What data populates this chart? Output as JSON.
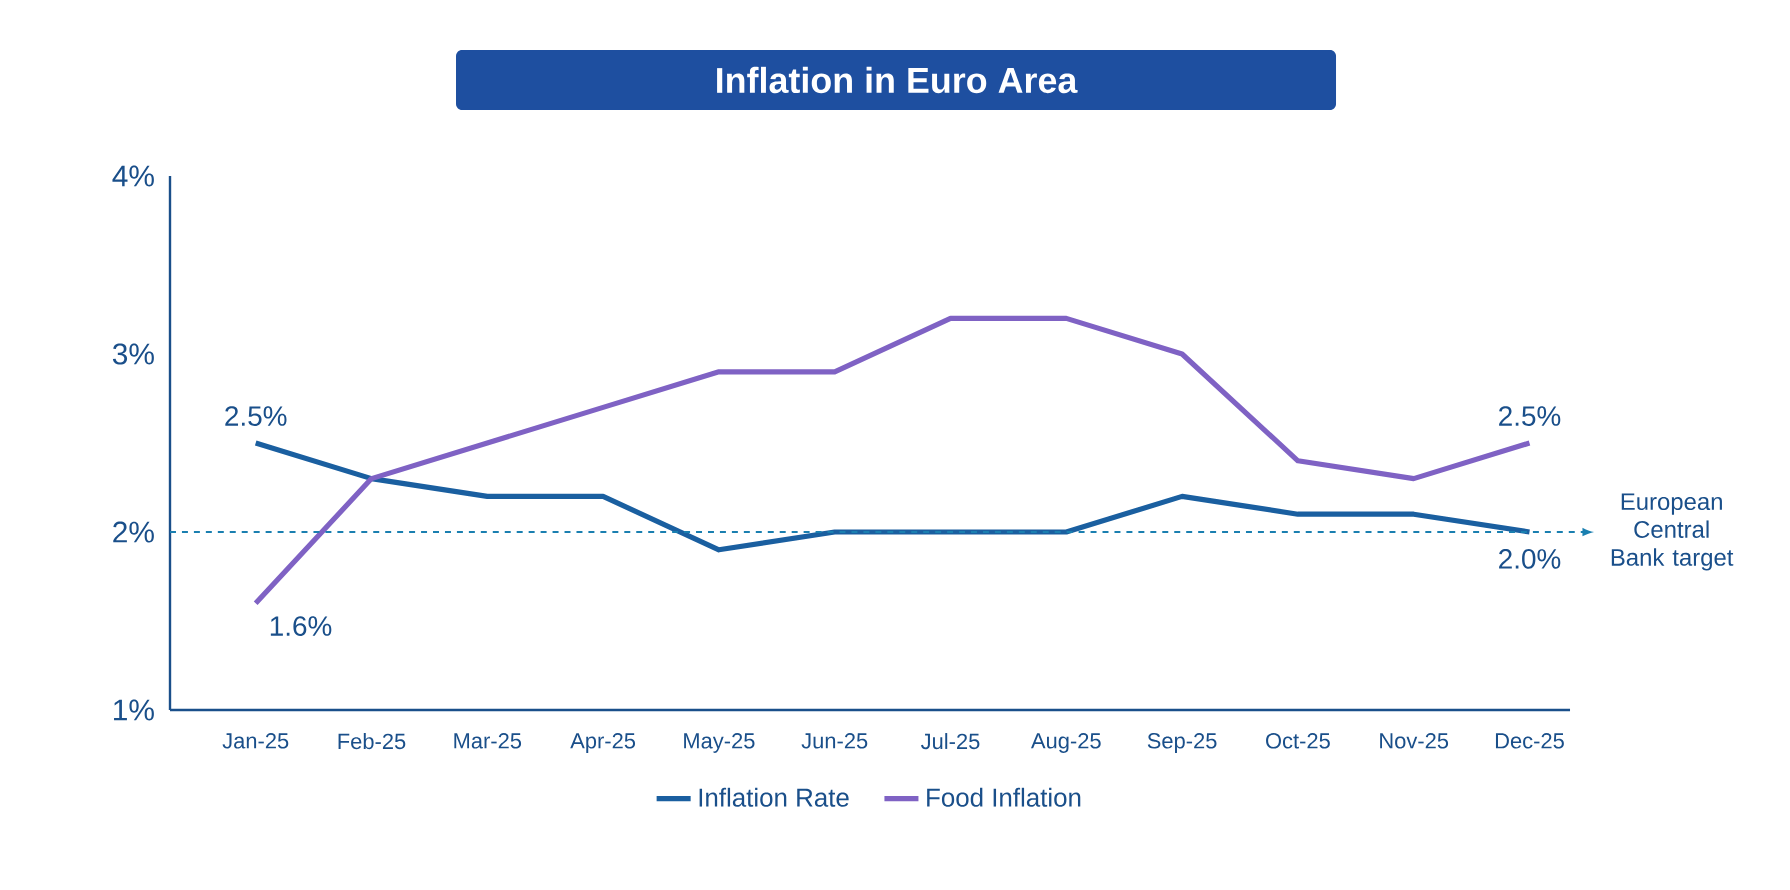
{
  "chart_data": {
    "type": "line",
    "title": "Inflation in Euro Area",
    "categories": [
      "Jan-25",
      "Feb-25",
      "Mar-25",
      "Apr-25",
      "May-25",
      "Jun-25",
      "Jul-25",
      "Aug-25",
      "Sep-25",
      "Oct-25",
      "Nov-25",
      "Dec-25"
    ],
    "series": [
      {
        "name": "Inflation Rate",
        "color": "#1a5fa0",
        "values": [
          2.5,
          2.3,
          2.2,
          2.2,
          1.9,
          2.0,
          2.0,
          2.0,
          2.2,
          2.1,
          2.1,
          2.0
        ],
        "value_labels": [
          "2.5%",
          null,
          null,
          null,
          null,
          null,
          null,
          null,
          null,
          null,
          null,
          "2.0%"
        ]
      },
      {
        "name": "Food Inflation",
        "color": "#7f62c4",
        "values": [
          1.6,
          2.3,
          2.5,
          2.7,
          2.9,
          2.9,
          3.2,
          3.2,
          3.0,
          2.4,
          2.3,
          2.5
        ],
        "value_labels": [
          "1.6%",
          null,
          null,
          null,
          null,
          null,
          null,
          null,
          null,
          null,
          null,
          "2.5%"
        ]
      }
    ],
    "ylim": [
      1,
      4
    ],
    "yticks": [
      {
        "value": 1,
        "label": "1%"
      },
      {
        "value": 2,
        "label": "2%"
      },
      {
        "value": 3,
        "label": "3%"
      },
      {
        "value": 4,
        "label": "4%"
      }
    ],
    "ref_lines": [
      {
        "axis": "y",
        "value": 2,
        "label": "European Central Bank target",
        "color": "#1a7fb0",
        "line_style": "dashed"
      }
    ],
    "grid": false,
    "legend": "bottom",
    "marker": "none",
    "line_style": "solid"
  }
}
